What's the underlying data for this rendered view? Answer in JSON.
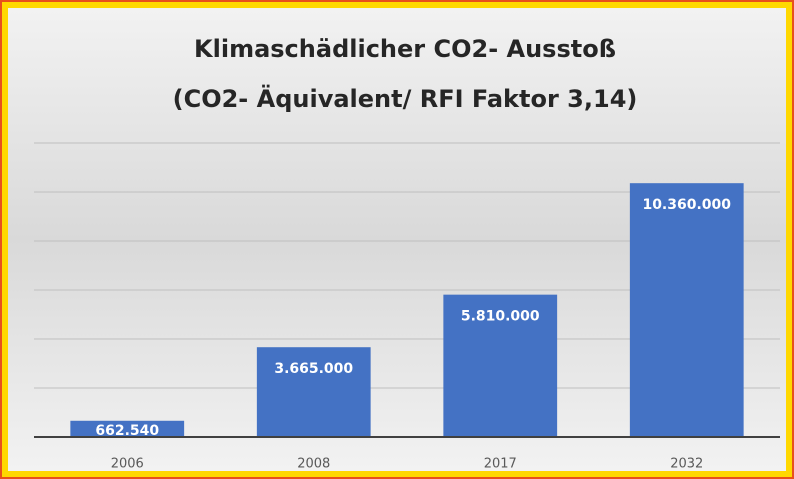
{
  "chart_data": {
    "type": "bar",
    "title": [
      "Klimaschädlicher  CO2- Ausstoß",
      "(CO2- Äquivalent/  RFI Faktor 3,14)"
    ],
    "categories": [
      "2006",
      "2008",
      "2017",
      "2032"
    ],
    "values": [
      662540,
      3665000,
      5810000,
      10360000
    ],
    "value_labels": [
      "662.540",
      "3.665.000",
      "5.810.000",
      "10.360.000"
    ],
    "color": "#4472c4",
    "ylim": [
      0,
      12000000
    ],
    "yticks": [
      0,
      2000000,
      4000000,
      6000000,
      8000000,
      10000000,
      12000000
    ],
    "grid": true
  }
}
